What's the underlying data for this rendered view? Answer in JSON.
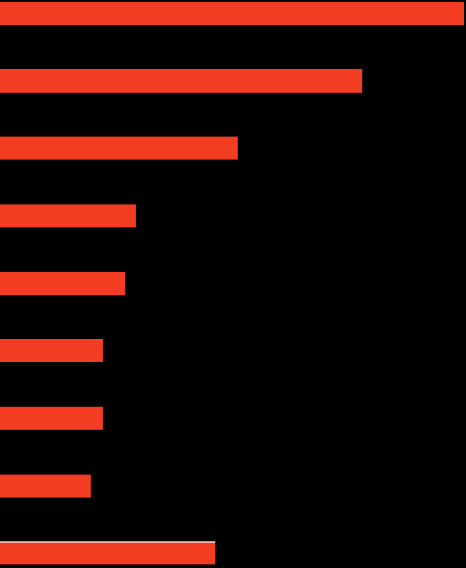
{
  "chart_data": {
    "type": "bar",
    "orientation": "horizontal",
    "values": [
      100,
      78,
      51.3,
      29.3,
      27,
      22.2,
      22.2,
      19.5,
      46.4
    ],
    "xlim": [
      0,
      100
    ],
    "grid": false,
    "colors": {
      "background": "#000000",
      "bar": "#f33d22",
      "highlight_edge": "#ffffff"
    },
    "highlight_index": 8
  }
}
